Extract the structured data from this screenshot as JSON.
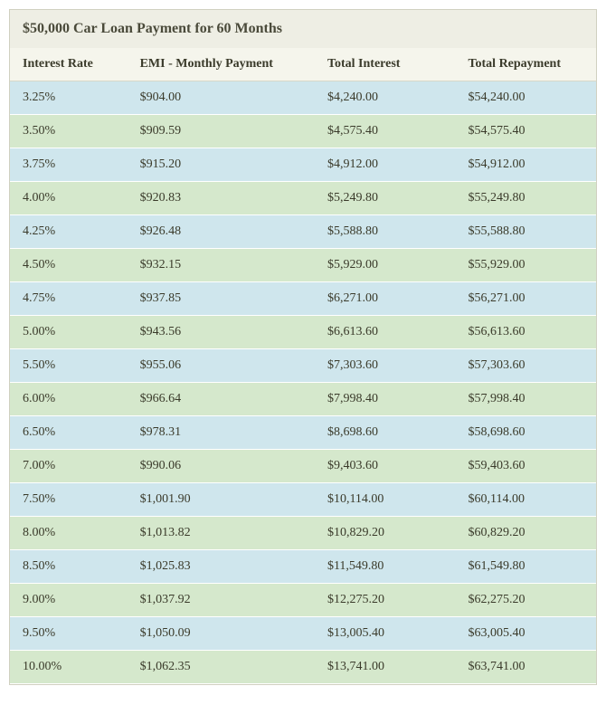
{
  "title": "$50,000 Car Loan Payment for 60 Months",
  "columns": [
    "Interest Rate",
    "EMI - Monthly Payment",
    "Total Interest",
    "Total Repayment"
  ],
  "row_colors": {
    "odd": "#cfe6ed",
    "even": "#d5e8cc"
  },
  "header_bg": "#f5f5ec",
  "container_bg": "#eeeee4",
  "text_color": "#3a3a2a",
  "font_family": "Georgia, serif",
  "rows": [
    {
      "rate": "3.25%",
      "emi": "$904.00",
      "interest": "$4,240.00",
      "total": "$54,240.00"
    },
    {
      "rate": "3.50%",
      "emi": "$909.59",
      "interest": "$4,575.40",
      "total": "$54,575.40"
    },
    {
      "rate": "3.75%",
      "emi": "$915.20",
      "interest": "$4,912.00",
      "total": "$54,912.00"
    },
    {
      "rate": "4.00%",
      "emi": "$920.83",
      "interest": "$5,249.80",
      "total": "$55,249.80"
    },
    {
      "rate": "4.25%",
      "emi": "$926.48",
      "interest": "$5,588.80",
      "total": "$55,588.80"
    },
    {
      "rate": "4.50%",
      "emi": "$932.15",
      "interest": "$5,929.00",
      "total": "$55,929.00"
    },
    {
      "rate": "4.75%",
      "emi": "$937.85",
      "interest": "$6,271.00",
      "total": "$56,271.00"
    },
    {
      "rate": "5.00%",
      "emi": "$943.56",
      "interest": "$6,613.60",
      "total": "$56,613.60"
    },
    {
      "rate": "5.50%",
      "emi": "$955.06",
      "interest": "$7,303.60",
      "total": "$57,303.60"
    },
    {
      "rate": "6.00%",
      "emi": "$966.64",
      "interest": "$7,998.40",
      "total": "$57,998.40"
    },
    {
      "rate": "6.50%",
      "emi": "$978.31",
      "interest": "$8,698.60",
      "total": "$58,698.60"
    },
    {
      "rate": "7.00%",
      "emi": "$990.06",
      "interest": "$9,403.60",
      "total": "$59,403.60"
    },
    {
      "rate": "7.50%",
      "emi": "$1,001.90",
      "interest": "$10,114.00",
      "total": "$60,114.00"
    },
    {
      "rate": "8.00%",
      "emi": "$1,013.82",
      "interest": "$10,829.20",
      "total": "$60,829.20"
    },
    {
      "rate": "8.50%",
      "emi": "$1,025.83",
      "interest": "$11,549.80",
      "total": "$61,549.80"
    },
    {
      "rate": "9.00%",
      "emi": "$1,037.92",
      "interest": "$12,275.20",
      "total": "$62,275.20"
    },
    {
      "rate": "9.50%",
      "emi": "$1,050.09",
      "interest": "$13,005.40",
      "total": "$63,005.40"
    },
    {
      "rate": "10.00%",
      "emi": "$1,062.35",
      "interest": "$13,741.00",
      "total": "$63,741.00"
    }
  ]
}
